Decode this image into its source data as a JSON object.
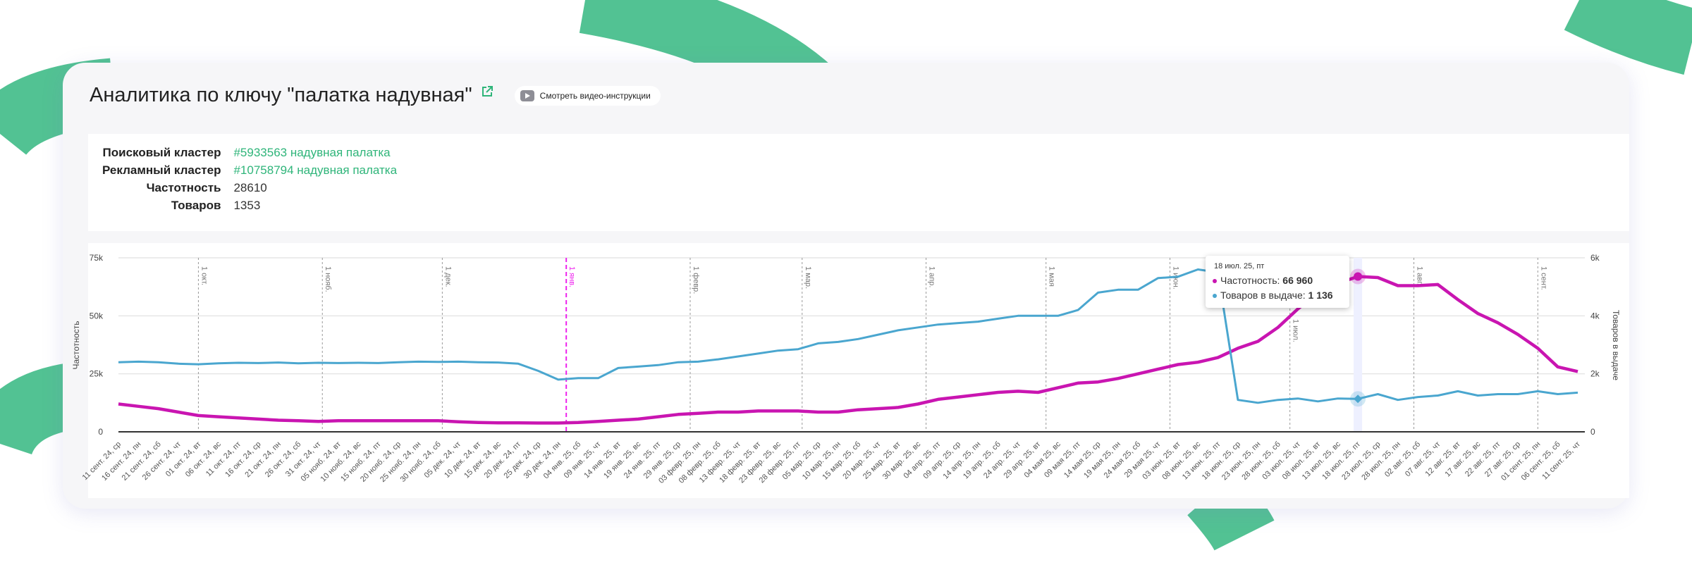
{
  "colors": {
    "accent": "#2fb57a",
    "background_arcs": "#52c293",
    "frequency": "#c915b1",
    "products": "#4aa6cf",
    "marker_highlight": "#ee22ee"
  },
  "header": {
    "title": "Аналитика по ключу \"палатка надувная\"",
    "external_link_icon": "external-link-icon",
    "video_button_label": "Смотреть видео-инструкции",
    "video_icon": "play-icon"
  },
  "info": {
    "search_cluster": {
      "label": "Поисковый кластер",
      "value": "#5933563 надувная палатка"
    },
    "ad_cluster": {
      "label": "Рекламный кластер",
      "value": "#10758794 надувная палатка"
    },
    "frequency": {
      "label": "Частотность",
      "value": "28610"
    },
    "products": {
      "label": "Товаров",
      "value": "1353"
    }
  },
  "tooltip": {
    "date": "18 июл. 25, пт",
    "frequency_label": "Частотность:",
    "frequency_value": "66 960",
    "products_label": "Товаров в выдаче:",
    "products_value": "1 136"
  },
  "chart_data": {
    "type": "line",
    "ylabel": "Частотность",
    "y2label": "Товаров в выдаче",
    "ylim": [
      0,
      75000
    ],
    "y2lim": [
      0,
      6000
    ],
    "yticks": [
      "0",
      "25k",
      "50k",
      "75k"
    ],
    "y2ticks": [
      "0",
      "2k",
      "4k",
      "6k"
    ],
    "grid": true,
    "categories": [
      "11 сент. 24, ср",
      "16 сент. 24, пн",
      "21 сент. 24, сб",
      "26 сент. 24, чт",
      "01 окт. 24, вт",
      "06 окт. 24, вс",
      "11 окт. 24, пт",
      "16 окт. 24, ср",
      "21 окт. 24, пн",
      "26 окт. 24, сб",
      "31 окт. 24, чт",
      "05 нояб. 24, вт",
      "10 нояб. 24, вс",
      "15 нояб. 24, пт",
      "20 нояб. 24, ср",
      "25 нояб. 24, пн",
      "30 нояб. 24, сб",
      "05 дек. 24, чт",
      "10 дек. 24, вт",
      "15 дек. 24, вс",
      "20 дек. 24, пт",
      "25 дек. 24, ср",
      "30 дек. 24, пн",
      "04 янв. 25, сб",
      "09 янв. 25, чт",
      "14 янв. 25, вт",
      "19 янв. 25, вс",
      "24 янв. 25, пт",
      "29 янв. 25, ср",
      "03 февр. 25, пн",
      "08 февр. 25, сб",
      "13 февр. 25, чт",
      "18 февр. 25, вт",
      "23 февр. 25, вс",
      "28 февр. 25, пт",
      "05 мар. 25, ср",
      "10 мар. 25, пн",
      "15 мар. 25, сб",
      "20 мар. 25, чт",
      "25 мар. 25, вт",
      "30 мар. 25, вс",
      "04 апр. 25, пт",
      "09 апр. 25, ср",
      "14 апр. 25, пн",
      "19 апр. 25, сб",
      "24 апр. 25, чт",
      "29 апр. 25, вт",
      "04 мая 25, вс",
      "09 мая 25, пт",
      "14 мая 25, ср",
      "19 мая 25, пн",
      "24 мая 25, сб",
      "29 мая 25, чт",
      "03 июн. 25, вт",
      "08 июн. 25, вс",
      "13 июн. 25, пт",
      "18 июн. 25, ср",
      "23 июн. 25, пн",
      "28 июн. 25, сб",
      "03 июл. 25, чт",
      "08 июл. 25, вт",
      "13 июл. 25, вс",
      "18 июл. 25, пт",
      "23 июл. 25, ср",
      "28 июл. 25, пн",
      "02 авг. 25, сб",
      "07 авг. 25, чт",
      "12 авг. 25, вт",
      "17 авг. 25, вс",
      "22 авг. 25, пт",
      "27 авг. 25, ср",
      "01 сент. 25, пн",
      "06 сент. 25, сб",
      "11 сент. 25, чт"
    ],
    "series": [
      {
        "name": "Частотность",
        "axis": "left",
        "values": [
          12000,
          11000,
          10000,
          8500,
          7000,
          6500,
          6000,
          5500,
          5000,
          4800,
          4500,
          4800,
          4800,
          4800,
          4800,
          4800,
          4800,
          4300,
          4000,
          3900,
          3900,
          3800,
          3800,
          4000,
          4500,
          5000,
          5500,
          6500,
          7500,
          8000,
          8500,
          8500,
          9000,
          9000,
          9000,
          8500,
          8500,
          9500,
          10000,
          10500,
          12000,
          14000,
          15000,
          16000,
          17000,
          17500,
          17000,
          19000,
          21000,
          21500,
          23000,
          25000,
          27000,
          29000,
          30000,
          32000,
          36000,
          39000,
          45000,
          53000,
          60000,
          64000,
          66960,
          66500,
          63000,
          63000,
          63500,
          57000,
          51000,
          47000,
          42000,
          36000,
          28000,
          26000
        ]
      },
      {
        "name": "Товаров в выдаче",
        "axis": "right",
        "values": [
          2400,
          2420,
          2400,
          2350,
          2330,
          2360,
          2380,
          2370,
          2390,
          2360,
          2380,
          2370,
          2380,
          2370,
          2400,
          2420,
          2410,
          2420,
          2400,
          2390,
          2350,
          2100,
          1800,
          1850,
          1850,
          2200,
          2250,
          2300,
          2400,
          2420,
          2500,
          2600,
          2700,
          2800,
          2850,
          3050,
          3100,
          3200,
          3350,
          3500,
          3600,
          3700,
          3750,
          3800,
          3900,
          4000,
          4000,
          4000,
          4200,
          4800,
          4900,
          4900,
          5300,
          5350,
          5600,
          5500,
          1100,
          1000,
          1100,
          1150,
          1050,
          1150,
          1136,
          1300,
          1100,
          1200,
          1250,
          1400,
          1250,
          1300,
          1300,
          1400,
          1300,
          1350
        ]
      }
    ],
    "month_markers": [
      {
        "label": "1 окт.",
        "date": "2024-10-01"
      },
      {
        "label": "1 нояб.",
        "date": "2024-11-01"
      },
      {
        "label": "1 дек.",
        "date": "2024-12-01"
      },
      {
        "label": "1 янв.",
        "date": "2025-01-01",
        "highlighted": true
      },
      {
        "label": "1 февр.",
        "date": "2025-02-01"
      },
      {
        "label": "1 мар.",
        "date": "2025-03-01"
      },
      {
        "label": "1 апр.",
        "date": "2025-04-01"
      },
      {
        "label": "1 мая",
        "date": "2025-05-01"
      },
      {
        "label": "1 июн.",
        "date": "2025-06-01"
      },
      {
        "label": "1 июл.",
        "date": "2025-07-01"
      },
      {
        "label": "1 авг.",
        "date": "2025-08-01"
      },
      {
        "label": "1 сент.",
        "date": "2025-09-01"
      }
    ],
    "hover_category": "18 июл. 25, пт"
  }
}
